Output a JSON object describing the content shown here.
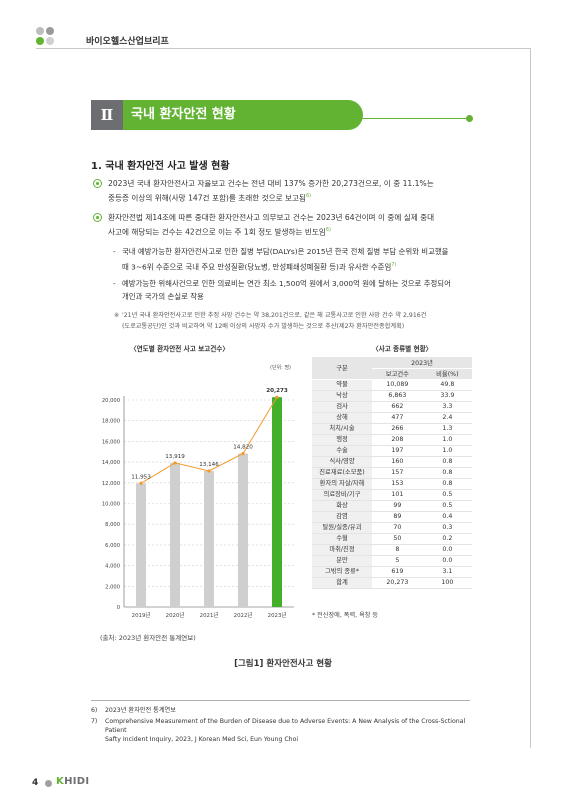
{
  "header": {
    "title": "바이오헬스산업브리프"
  },
  "section": {
    "roman": "Ⅱ",
    "title": "국내 환자안전 현황"
  },
  "heading": "1. 국내 환자안전 사고 발생 현황",
  "bullets": [
    {
      "lines": [
        "2023년 국내 환자안전사고 자율보고 건수는 전년 대비 137% 증가한 20,273건으로, 이 중 11.1%는",
        "중등증 이상의 위해(사망 147건 포함)를 초래한 것으로 보고됨"
      ],
      "sup": "6)"
    },
    {
      "lines": [
        "환자안전법 제14조에 따른 중대한 환자안전사고 의무보고 건수는 2023년 64건이며 이 중에 실제 중대",
        "사고에 해당되는 건수는 42건으로 이는 주 1회 정도 발생하는 빈도임"
      ],
      "sup": "6)"
    }
  ],
  "subs": [
    {
      "lines": [
        "국내 예방가능한 환자안전사고로 인한 질병 부담(DALYs)은 2015년 한국 전체 질병 부담 순위와 비교했을",
        "때 3~6위 수준으로 국내 주요 만성질환(당뇨병, 만성폐쇄성폐질환 등)과 유사한 수준임"
      ],
      "sup": "7)"
    },
    {
      "lines": [
        "예방가능한 위해사건으로 인한 의료비는 연간 최소 1,500억 원에서 3,000억 원에 달하는 것으로 추정되어",
        "개인과 국가의 손실로 작용"
      ]
    }
  ],
  "note": {
    "mark": "※",
    "lines": [
      "'21년 국내 환자안전사고로 인한 추정 사망 건수는 약 38,201건으로, 같은 해 교통사고로 인한 사망 건수 약 2,916건",
      "(도로교통공단)인 것과 비교하여 약 12배 이상의 사망자 수가 발생하는 것으로 추산(제2차 환자안전종합계획)"
    ]
  },
  "chart_data": {
    "type": "bar",
    "title": "〈연도별 환자안전 사고 보고건수〉",
    "unit": "(단위: 명)",
    "categories": [
      "2019년",
      "2020년",
      "2021년",
      "2022년",
      "2023년"
    ],
    "values": [
      11953,
      13919,
      13146,
      14820,
      20273
    ],
    "value_labels": [
      "11,953",
      "13,919",
      "13,146",
      "14,820",
      "20,273"
    ],
    "ylim": [
      0,
      20000
    ],
    "yticks": [
      0,
      2000,
      4000,
      6000,
      8000,
      10000,
      12000,
      14000,
      16000,
      18000,
      20000
    ],
    "ytick_labels": [
      "0",
      "2,000",
      "4,000",
      "6,000",
      "8,000",
      "10,000",
      "12,000",
      "14,000",
      "16,000",
      "18,000",
      "20,000"
    ],
    "grid": true,
    "line_overlay": true,
    "colors": {
      "bar": "#cfcfcf",
      "bar_highlight": "#43b02a",
      "line": "#f39a2b"
    }
  },
  "table": {
    "title": "〈사고 종류별 현황〉",
    "col_group": "2023년",
    "headers": [
      "구분",
      "보고건수",
      "비율(%)"
    ],
    "rows": [
      [
        "약물",
        "10,089",
        "49.8"
      ],
      [
        "낙상",
        "6,863",
        "33.9"
      ],
      [
        "검사",
        "662",
        "3.3"
      ],
      [
        "상해",
        "477",
        "2.4"
      ],
      [
        "처치/시술",
        "266",
        "1.3"
      ],
      [
        "행정",
        "208",
        "1.0"
      ],
      [
        "수술",
        "197",
        "1.0"
      ],
      [
        "식사/영양",
        "160",
        "0.8"
      ],
      [
        "진료재료(소모품)",
        "157",
        "0.8"
      ],
      [
        "환자의 자살/자해",
        "153",
        "0.8"
      ],
      [
        "의료장비/기구",
        "101",
        "0.5"
      ],
      [
        "화상",
        "99",
        "0.5"
      ],
      [
        "감염",
        "89",
        "0.4"
      ],
      [
        "탈원/실종/유괴",
        "70",
        "0.3"
      ],
      [
        "수혈",
        "50",
        "0.2"
      ],
      [
        "마취/진정",
        "8",
        "0.0"
      ],
      [
        "분만",
        "5",
        "0.0"
      ],
      [
        "그밖의 종류*",
        "619",
        "3.1"
      ],
      [
        "합계",
        "20,273",
        "100"
      ]
    ],
    "note": "* 전신장애, 폭력, 욕창 등"
  },
  "source": "(출처: 2023년 환자안전 통계연보)",
  "figure_caption": "[그림1] 환자안전사고 현황",
  "footnotes": [
    {
      "num": "6)",
      "lines": [
        "2023년 환자안전 통계연보"
      ]
    },
    {
      "num": "7)",
      "lines": [
        "Comprehensive Measurement of the Burden of Disease due to Adverse Events: A New Analysis of the Cross-Sctional Patient",
        "Safty Incident Inquiry, 2023, J Korean Med Sci, Eun Young Choi"
      ]
    }
  ],
  "footer": {
    "page": "4",
    "logo_k": "K",
    "logo_rest": "HIDI",
    "colors": {
      "logo_k": "#62b332",
      "logo_rest": "#6d6e71"
    }
  }
}
